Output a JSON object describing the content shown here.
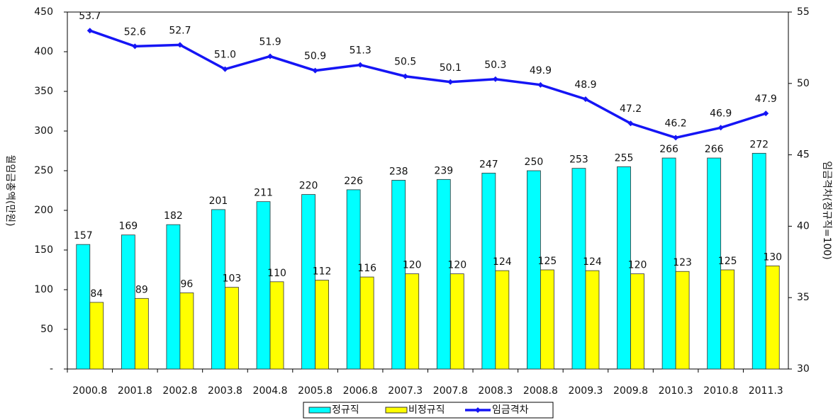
{
  "chart_data": {
    "type": "bar",
    "categories": [
      "2000.8",
      "2001.8",
      "2002.8",
      "2003.8",
      "2004.8",
      "2005.8",
      "2006.8",
      "2007.3",
      "2007.8",
      "2008.3",
      "2008.8",
      "2009.3",
      "2009.8",
      "2010.3",
      "2010.8",
      "2011.3"
    ],
    "series": [
      {
        "name": "정규직",
        "type": "bar",
        "color": "#00ffff",
        "values": [
          157,
          169,
          182,
          201,
          211,
          220,
          226,
          238,
          239,
          247,
          250,
          253,
          255,
          266,
          266,
          272
        ]
      },
      {
        "name": "비정규직",
        "type": "bar",
        "color": "#ffff00",
        "values": [
          84,
          89,
          96,
          103,
          110,
          112,
          116,
          120,
          120,
          124,
          125,
          124,
          120,
          123,
          125,
          130
        ]
      },
      {
        "name": "임금격차",
        "type": "line",
        "axis": "y2",
        "color": "#1515f5",
        "values": [
          53.7,
          52.6,
          52.7,
          51.0,
          51.9,
          50.9,
          51.3,
          50.5,
          50.1,
          50.3,
          49.9,
          48.9,
          47.2,
          46.2,
          46.9,
          47.9
        ],
        "value_labels": [
          "53.7",
          "52.6",
          "52.7",
          "51.0",
          "51.9",
          "50.9",
          "51.3",
          "50.5",
          "50.1",
          "50.3",
          "49.9",
          "48.9",
          "47.2",
          "46.2",
          "46.9",
          "47.9"
        ]
      }
    ],
    "ylabel": "월임금총액(만원)",
    "y2label": "임금격차(정규직=100)",
    "ylim": [
      0,
      450
    ],
    "yticks": [
      {
        "value": 0,
        "label": "-"
      },
      50,
      100,
      150,
      200,
      250,
      300,
      350,
      400,
      450
    ],
    "y2lim": [
      30,
      55
    ],
    "y2ticks": [
      30,
      35,
      40,
      45,
      50,
      55
    ],
    "legend": "bottom"
  }
}
